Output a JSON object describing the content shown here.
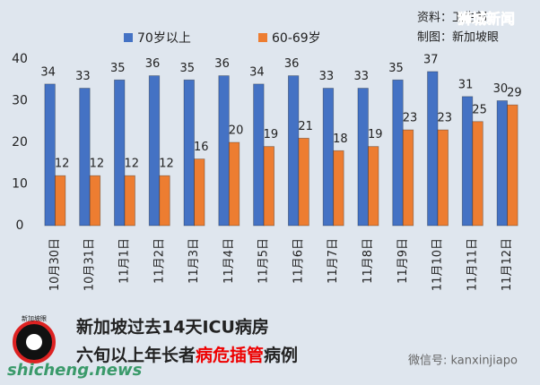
{
  "chart_data": {
    "type": "bar",
    "title": "新加坡过去14天ICU病房",
    "subtitle_parts": [
      "六旬以上年长者",
      "病危插管",
      "病例"
    ],
    "categories": [
      "10月30日",
      "10月31日",
      "11月1日",
      "11月2日",
      "11月3日",
      "11月4日",
      "11月5日",
      "11月6日",
      "11月7日",
      "11月8日",
      "11月9日",
      "11月10日",
      "11月11日",
      "11月12日"
    ],
    "series": [
      {
        "name": "70岁以上",
        "color": "#4472c4",
        "values": [
          34,
          33,
          35,
          36,
          35,
          36,
          34,
          36,
          33,
          33,
          35,
          37,
          31,
          30
        ]
      },
      {
        "name": "60-69岁",
        "color": "#ed7d31",
        "values": [
          12,
          12,
          12,
          12,
          16,
          20,
          19,
          21,
          18,
          19,
          23,
          23,
          25,
          29
        ]
      }
    ],
    "ylim": [
      0,
      40
    ],
    "yticks": [
      0,
      10,
      20,
      30,
      40
    ],
    "grid": false,
    "annotations": {
      "source": "资料：卫生部",
      "author": "制图：新加坡眼",
      "watermark": "狮城新闻",
      "site": "shicheng.news",
      "wechat": "微信号: kanxinjiapo",
      "logo": "新加坡眼"
    }
  }
}
